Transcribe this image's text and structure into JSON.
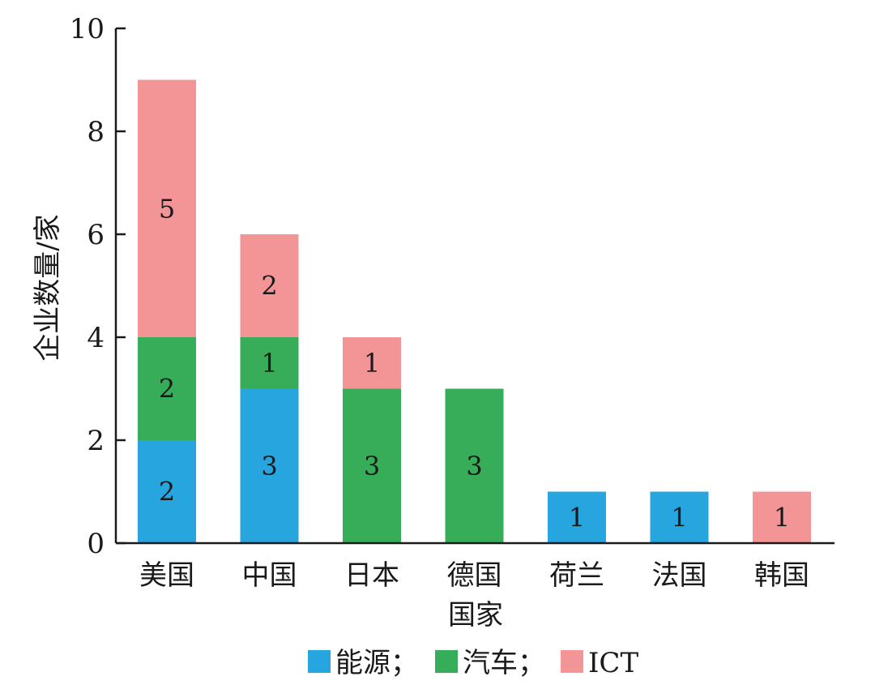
{
  "chart_data": {
    "type": "bar",
    "stacked": true,
    "xlabel": "国家",
    "ylabel": "企业数量/家",
    "ylim": [
      0,
      10
    ],
    "yticks": [
      0,
      2,
      4,
      6,
      8,
      10
    ],
    "grid": false,
    "legend_position": "bottom",
    "categories": [
      "美国",
      "中国",
      "日本",
      "德国",
      "荷兰",
      "法国",
      "韩国"
    ],
    "series": [
      {
        "name": "能源；",
        "color": "#26a5de",
        "values": [
          2,
          3,
          0,
          0,
          1,
          1,
          0
        ]
      },
      {
        "name": "汽车；",
        "color": "#37ad5a",
        "values": [
          2,
          1,
          3,
          3,
          0,
          0,
          0
        ]
      },
      {
        "name": "ICT",
        "color": "#f39597",
        "values": [
          5,
          2,
          1,
          0,
          0,
          0,
          1
        ]
      }
    ]
  }
}
